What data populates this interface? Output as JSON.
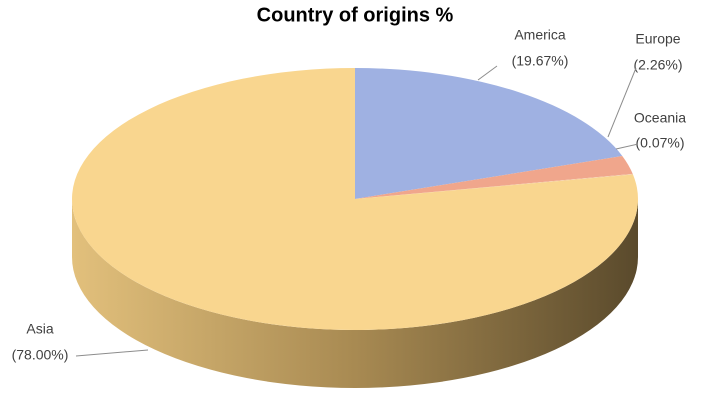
{
  "chart_data": {
    "type": "pie",
    "title": "Country of origins %",
    "categories": [
      "America",
      "Europe",
      "Oceania",
      "Asia"
    ],
    "values": [
      19.67,
      2.26,
      0.07,
      78.0
    ],
    "value_labels": [
      "(19.67%)",
      "(2.26%)",
      "(0.07%)",
      "(78.00%)"
    ],
    "colors": [
      "#9fb1e2",
      "#f0a68c",
      "#f3c8a2",
      "#f9d68f"
    ]
  }
}
